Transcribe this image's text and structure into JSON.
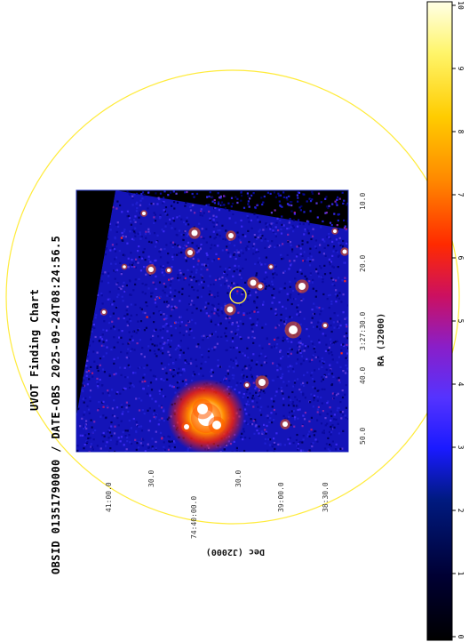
{
  "chart": {
    "title": "UVOT Finding Chart",
    "subtitle": "OBSID 01351790000 / DATE-OBS 2025-09-24T08:24:56.5",
    "ra_label": "RA (J2000)",
    "dec_label": "Dec (J2000)",
    "ra_ticks": [
      "10.0",
      "20.0",
      "3:27:30.0",
      "40.0",
      "50.0"
    ],
    "dec_ticks": [
      "41:00.0",
      "30.0",
      "74:40:00.0",
      "30.0",
      "39:00.0",
      "38:30.0"
    ],
    "colorbar_ticks": [
      "0",
      "1",
      "2",
      "3",
      "4",
      "5",
      "6",
      "7",
      "8",
      "9",
      "10"
    ],
    "colors": {
      "circle": "#ffeb3b",
      "frame": "#2233bb",
      "background": "#ffffff"
    }
  }
}
